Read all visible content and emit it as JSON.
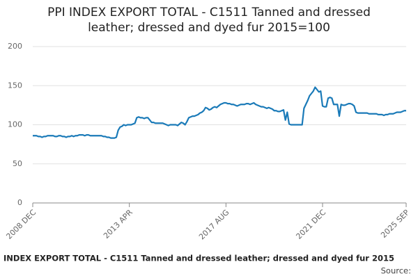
{
  "chart_data": {
    "type": "line",
    "title": [
      "PPI INDEX EXPORT TOTAL - C1511 Tanned and dressed",
      "leather; dressed and dyed fur 2015=100"
    ],
    "footer": "INDEX EXPORT TOTAL - C1511 Tanned and dressed leather; dressed and dyed fur 2015",
    "source": "Source:",
    "categories": [
      "2008 DEC",
      null,
      null,
      null,
      null,
      null,
      null,
      null,
      null,
      null,
      null,
      null,
      null,
      null,
      null,
      null,
      null,
      null,
      null,
      null,
      null,
      null,
      null,
      null,
      null,
      null,
      null,
      null,
      null,
      null,
      null,
      null,
      null,
      null,
      null,
      null,
      null,
      null,
      null,
      null,
      null,
      null,
      null,
      null,
      null,
      null,
      null,
      null,
      null,
      null,
      null,
      null,
      "2013 APR",
      null,
      null,
      null,
      null,
      null,
      null,
      null,
      null,
      null,
      null,
      null,
      null,
      null,
      null,
      null,
      null,
      null,
      null,
      null,
      null,
      null,
      null,
      null,
      null,
      null,
      null,
      null,
      null,
      null,
      null,
      null,
      null,
      null,
      null,
      null,
      null,
      null,
      null,
      null,
      null,
      null,
      null,
      null,
      null,
      null,
      null,
      null,
      null,
      null,
      null,
      null,
      "2017 AUG",
      null,
      null,
      null,
      null,
      null,
      null,
      null,
      null,
      null,
      null,
      null,
      null,
      null,
      null,
      null,
      null,
      null,
      null,
      null,
      null,
      null,
      null,
      null,
      null,
      null,
      null,
      null,
      null,
      null,
      null,
      null,
      null,
      null,
      null,
      null,
      null,
      null,
      null,
      null,
      null,
      null,
      null,
      null,
      null,
      null,
      null,
      null,
      null,
      null,
      null,
      null,
      "2021 DEC",
      null,
      null,
      null,
      null,
      null,
      null,
      null,
      null,
      null,
      null,
      null,
      null,
      null,
      null,
      null,
      null,
      null,
      null,
      null,
      null,
      null,
      null,
      null,
      null,
      null,
      null,
      null,
      null,
      null,
      null,
      null,
      null,
      null,
      null,
      null,
      null,
      null,
      null,
      null,
      null,
      null,
      null,
      null,
      null,
      "2025 SEP"
    ],
    "series": [
      {
        "color": "#1a7ab8",
        "values": [
          86,
          86,
          86,
          85,
          85,
          84,
          85,
          85,
          86,
          86,
          86,
          86,
          85,
          85,
          86,
          86,
          85,
          85,
          84,
          85,
          85,
          86,
          85,
          86,
          86,
          87,
          87,
          87,
          86,
          87,
          87,
          86,
          86,
          86,
          86,
          86,
          86,
          86,
          85,
          85,
          84,
          84,
          83,
          83,
          83,
          84,
          93,
          97,
          98,
          100,
          99,
          100,
          100,
          100,
          101,
          102,
          109,
          110,
          109,
          109,
          108,
          109,
          109,
          106,
          103,
          103,
          102,
          102,
          102,
          102,
          102,
          101,
          100,
          99,
          100,
          100,
          100,
          100,
          99,
          101,
          103,
          102,
          100,
          104,
          109,
          110,
          111,
          111,
          112,
          113,
          115,
          116,
          118,
          122,
          121,
          119,
          120,
          122,
          123,
          122,
          124,
          126,
          127,
          128,
          128,
          127,
          127,
          126,
          126,
          125,
          124,
          125,
          126,
          126,
          126,
          127,
          127,
          126,
          127,
          128,
          126,
          125,
          124,
          123,
          123,
          122,
          121,
          122,
          121,
          120,
          118,
          118,
          117,
          117,
          118,
          119,
          106,
          116,
          101,
          100,
          100,
          100,
          100,
          100,
          100,
          100,
          121,
          126,
          131,
          137,
          140,
          143,
          148,
          145,
          142,
          143,
          124,
          123,
          123,
          134,
          135,
          134,
          126,
          126,
          126,
          111,
          126,
          125,
          125,
          126,
          127,
          127,
          126,
          124,
          116,
          115,
          115,
          115,
          115,
          115,
          115,
          114,
          114,
          114,
          114,
          114,
          113,
          113,
          113,
          112,
          113,
          113,
          114,
          114,
          114,
          115,
          116,
          116,
          116,
          117,
          118,
          118
        ]
      }
    ],
    "ylim": [
      0,
      200
    ],
    "yticks": [
      0,
      50,
      100,
      150,
      200
    ],
    "grid": true
  }
}
